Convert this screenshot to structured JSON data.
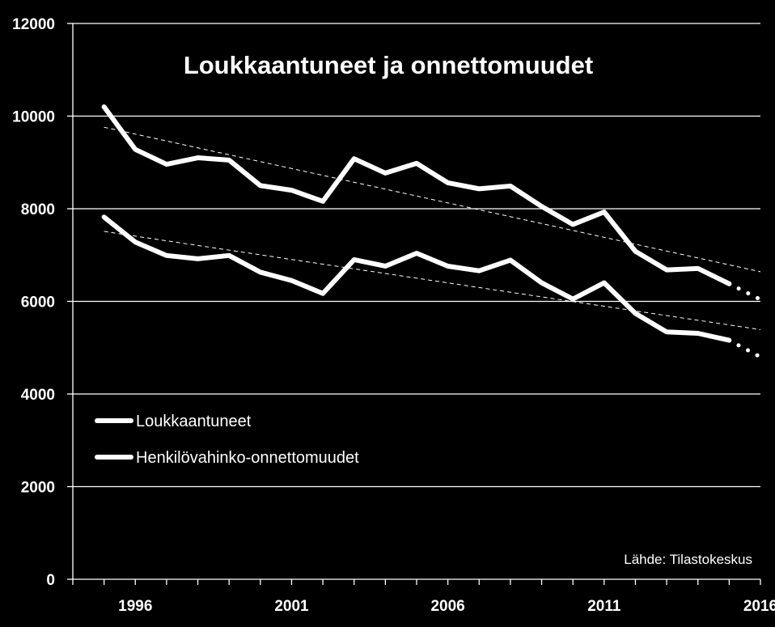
{
  "chart_data": {
    "type": "line",
    "title": "Loukkaantuneet ja onnettomuudet",
    "source": "Lähde: Tilastokeskus",
    "xlabel": "",
    "ylabel": "",
    "ylim": [
      0,
      12000
    ],
    "xlim": [
      1994,
      2016
    ],
    "y_ticks": [
      0,
      2000,
      4000,
      6000,
      8000,
      10000,
      12000
    ],
    "x_tick_labels": [
      1996,
      2001,
      2006,
      2011,
      2016
    ],
    "grid": "horizontal",
    "legend_position": "left-middle",
    "colors": {
      "background": "#000000",
      "lines": "#ffffff",
      "grid": "#ffffff"
    },
    "series": [
      {
        "name": "Loukkaantuneet",
        "x": [
          1995,
          1996,
          1997,
          1998,
          1999,
          2000,
          2001,
          2002,
          2003,
          2004,
          2005,
          2006,
          2007,
          2008,
          2009,
          2010,
          2011,
          2012,
          2013,
          2014,
          2015
        ],
        "values": [
          10200,
          9280,
          8960,
          9100,
          9050,
          8500,
          8400,
          8160,
          9080,
          8770,
          8980,
          8560,
          8430,
          8490,
          8050,
          7660,
          7930,
          7080,
          6680,
          6710,
          6380
        ],
        "trend": [
          9760,
          6640
        ],
        "projection": [
          [
            2015,
            6380
          ],
          [
            2016,
            6040
          ]
        ]
      },
      {
        "name": "Henkilövahinko-onnettomuudet",
        "x": [
          1995,
          1996,
          1997,
          1998,
          1999,
          2000,
          2001,
          2002,
          2003,
          2004,
          2005,
          2006,
          2007,
          2008,
          2009,
          2010,
          2011,
          2012,
          2013,
          2014,
          2015
        ],
        "values": [
          7820,
          7280,
          6990,
          6920,
          6990,
          6630,
          6450,
          6170,
          6900,
          6760,
          7040,
          6760,
          6660,
          6890,
          6400,
          6050,
          6400,
          5740,
          5340,
          5310,
          5160
        ],
        "trend": [
          7510,
          5390
        ],
        "projection": [
          [
            2015,
            5160
          ],
          [
            2016,
            4800
          ]
        ]
      }
    ]
  }
}
